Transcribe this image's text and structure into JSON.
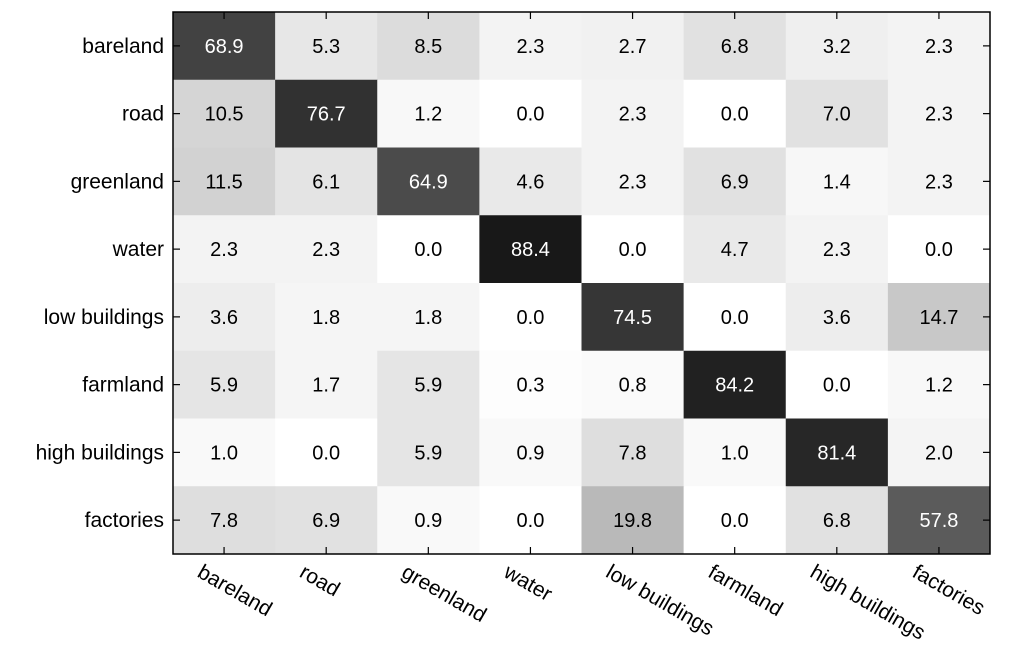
{
  "chart_data": {
    "type": "heatmap",
    "title": "",
    "xlabel": "",
    "ylabel": "",
    "colormap": "grayscale",
    "color_range": [
      0,
      100
    ],
    "rows": [
      "bareland",
      "road",
      "greenland",
      "water",
      "low buildings",
      "farmland",
      "high buildings",
      "factories"
    ],
    "columns": [
      "bareland",
      "road",
      "greenland",
      "water",
      "low buildings",
      "farmland",
      "high buildings",
      "factories"
    ],
    "values": [
      [
        "68.9",
        "5.3",
        "8.5",
        "2.3",
        "2.7",
        "6.8",
        "3.2",
        "2.3"
      ],
      [
        "10.5",
        "76.7",
        "1.2",
        "0.0",
        "2.3",
        "0.0",
        "7.0",
        "2.3"
      ],
      [
        "11.5",
        "6.1",
        "64.9",
        "4.6",
        "2.3",
        "6.9",
        "1.4",
        "2.3"
      ],
      [
        "2.3",
        "2.3",
        "0.0",
        "88.4",
        "0.0",
        "4.7",
        "2.3",
        "0.0"
      ],
      [
        "3.6",
        "1.8",
        "1.8",
        "0.0",
        "74.5",
        "0.0",
        "3.6",
        "14.7"
      ],
      [
        "5.9",
        "1.7",
        "5.9",
        "0.3",
        "0.8",
        "84.2",
        "0.0",
        "1.2"
      ],
      [
        "1.0",
        "0.0",
        "5.9",
        "0.9",
        "7.8",
        "1.0",
        "81.4",
        "2.0"
      ],
      [
        "7.8",
        "6.9",
        "0.9",
        "0.0",
        "19.8",
        "0.0",
        "6.8",
        "57.8"
      ]
    ]
  }
}
